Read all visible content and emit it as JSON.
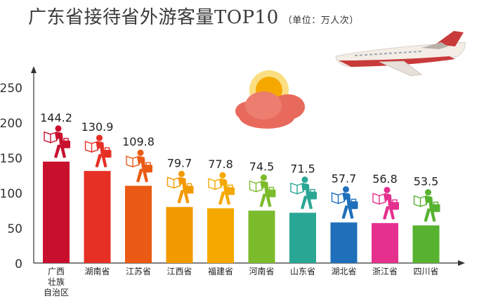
{
  "chart_data": {
    "type": "bar",
    "title": "广东省接待省外游客量TOP10",
    "subtitle": "（单位：万人次）",
    "categories": [
      "广西壮族自治区",
      "湖南省",
      "江苏省",
      "江西省",
      "福建省",
      "河南省",
      "山东省",
      "湖北省",
      "浙江省",
      "四川省"
    ],
    "category_lines": [
      [
        "广西",
        "壮族",
        "自治区"
      ],
      [
        "湖南省"
      ],
      [
        "江苏省"
      ],
      [
        "江西省"
      ],
      [
        "福建省"
      ],
      [
        "河南省"
      ],
      [
        "山东省"
      ],
      [
        "湖北省"
      ],
      [
        "浙江省"
      ],
      [
        "四川省"
      ]
    ],
    "values": [
      144.2,
      130.9,
      109.8,
      79.7,
      77.8,
      74.5,
      71.5,
      57.7,
      56.8,
      53.5
    ],
    "value_labels": [
      "144.2",
      "130.9",
      "109.8",
      "79.7",
      "77.8",
      "74.5",
      "71.5",
      "57.7",
      "56.8",
      "53.5"
    ],
    "ylim": [
      0,
      250
    ],
    "yticks": [
      0,
      50,
      100,
      150,
      200,
      250
    ],
    "xlabel": "",
    "ylabel": "",
    "grid": false,
    "colors": [
      "#c8102e",
      "#e63025",
      "#ea5a14",
      "#f39a00",
      "#f5a800",
      "#7cbb2c",
      "#2aa694",
      "#1f6fba",
      "#e5308e",
      "#57b22f"
    ]
  }
}
